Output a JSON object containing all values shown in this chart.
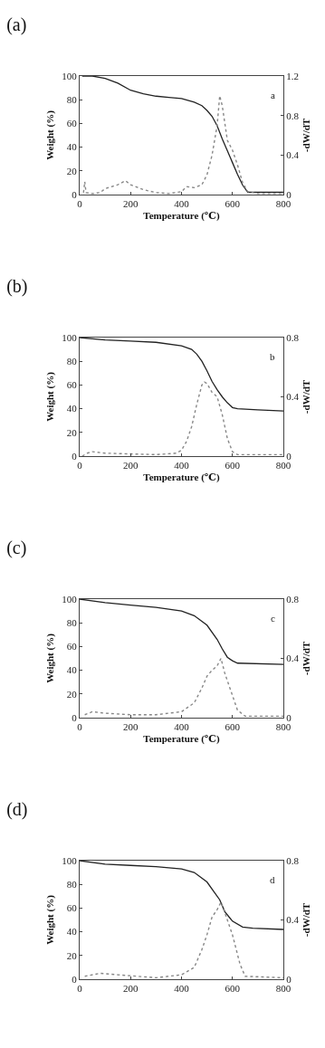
{
  "chart_data": [
    {
      "type": "line",
      "title": "(a)",
      "xlabel": "Temperature (℃)",
      "ylabel": "Weight (%)",
      "y2label": "-dW/dT",
      "annotations": [
        "a"
      ],
      "xlim": [
        0,
        800
      ],
      "xticks": [
        0,
        200,
        400,
        600,
        800
      ],
      "ylim": [
        0,
        100
      ],
      "yticks": [
        0,
        20,
        40,
        60,
        80,
        100
      ],
      "y2lim": [
        0,
        1.2
      ],
      "y2ticks": [
        0,
        0.4,
        0.8,
        1.2
      ],
      "grid": false,
      "series": [
        {
          "color": "#222222",
          "line_style": "solid",
          "x": [
            10,
            50,
            100,
            150,
            200,
            250,
            300,
            350,
            400,
            450,
            480,
            500,
            520,
            540,
            560,
            580,
            600,
            620,
            640,
            660,
            700,
            800
          ],
          "values": [
            100,
            100,
            98,
            94,
            88,
            85,
            83,
            82,
            81,
            78,
            75,
            71,
            66,
            58,
            47,
            37,
            27,
            17,
            8,
            2,
            2,
            2
          ]
        },
        {
          "axis": "y2",
          "color": "#888888",
          "line_style": "dotted",
          "x": [
            15,
            20,
            25,
            50,
            80,
            100,
            150,
            180,
            200,
            250,
            300,
            350,
            400,
            420,
            450,
            480,
            500,
            520,
            540,
            550,
            560,
            580,
            600,
            620,
            640,
            660,
            700,
            800
          ],
          "values": [
            0.02,
            0.13,
            0.02,
            0.01,
            0.02,
            0.06,
            0.1,
            0.14,
            0.1,
            0.05,
            0.02,
            0.01,
            0.03,
            0.08,
            0.07,
            0.1,
            0.2,
            0.4,
            0.7,
            1.0,
            0.9,
            0.55,
            0.45,
            0.3,
            0.12,
            0.03,
            0.01,
            0.01
          ]
        }
      ]
    },
    {
      "type": "line",
      "title": "(b)",
      "xlabel": "Temperature (℃)",
      "ylabel": "Weight (%)",
      "y2label": "-dW/dT",
      "annotations": [
        "b"
      ],
      "xlim": [
        0,
        800
      ],
      "xticks": [
        0,
        200,
        400,
        600,
        800
      ],
      "ylim": [
        0,
        100
      ],
      "yticks": [
        0,
        20,
        40,
        60,
        80,
        100
      ],
      "y2lim": [
        0,
        0.8
      ],
      "y2ticks": [
        0,
        0.4,
        0.8
      ],
      "grid": false,
      "series": [
        {
          "color": "#222222",
          "line_style": "solid",
          "x": [
            0,
            100,
            200,
            300,
            400,
            440,
            460,
            480,
            500,
            520,
            540,
            560,
            580,
            600,
            620,
            700,
            800
          ],
          "values": [
            100,
            98,
            97,
            96,
            93,
            90,
            86,
            80,
            72,
            63,
            56,
            50,
            45,
            41,
            40,
            39,
            38
          ]
        },
        {
          "axis": "y2",
          "color": "#888888",
          "line_style": "dotted",
          "x": [
            10,
            30,
            50,
            100,
            200,
            300,
            380,
            400,
            420,
            440,
            460,
            480,
            490,
            500,
            520,
            540,
            560,
            580,
            600,
            620,
            700,
            800
          ],
          "values": [
            0.0,
            0.02,
            0.03,
            0.02,
            0.015,
            0.01,
            0.02,
            0.04,
            0.1,
            0.2,
            0.35,
            0.48,
            0.5,
            0.49,
            0.43,
            0.4,
            0.28,
            0.12,
            0.03,
            0.01,
            0.01,
            0.01
          ]
        }
      ]
    },
    {
      "type": "line",
      "title": "(c)",
      "xlabel": "Temperature (℃)",
      "ylabel": "Weight (%)",
      "y2label": "-dW/dT",
      "annotations": [
        "c"
      ],
      "xlim": [
        0,
        800
      ],
      "xticks": [
        0,
        200,
        400,
        600,
        800
      ],
      "ylim": [
        0,
        100
      ],
      "yticks": [
        0,
        20,
        40,
        60,
        80,
        100
      ],
      "y2lim": [
        0,
        0.8
      ],
      "y2ticks": [
        0,
        0.4,
        0.8
      ],
      "grid": false,
      "series": [
        {
          "color": "#222222",
          "line_style": "solid",
          "x": [
            0,
            100,
            200,
            300,
            400,
            450,
            500,
            540,
            560,
            580,
            600,
            620,
            800
          ],
          "values": [
            100,
            97,
            95,
            93,
            90,
            86,
            78,
            66,
            58,
            51,
            48,
            46,
            45
          ]
        },
        {
          "axis": "y2",
          "color": "#888888",
          "line_style": "dotted",
          "x": [
            20,
            50,
            100,
            200,
            300,
            400,
            450,
            480,
            500,
            520,
            540,
            555,
            570,
            600,
            620,
            650,
            800
          ],
          "values": [
            0.02,
            0.04,
            0.03,
            0.02,
            0.02,
            0.04,
            0.1,
            0.2,
            0.28,
            0.32,
            0.35,
            0.4,
            0.3,
            0.15,
            0.05,
            0.01,
            0.01
          ]
        }
      ]
    },
    {
      "type": "line",
      "title": "(d)",
      "ylabel": "Weight (%)",
      "y2label": "-dW/dT",
      "annotations": [
        "d"
      ],
      "xlim": [
        0,
        800
      ],
      "xticks": [
        0,
        200,
        400,
        600,
        800
      ],
      "ylim": [
        0,
        100
      ],
      "yticks": [
        0,
        20,
        40,
        60,
        80,
        100
      ],
      "y2lim": [
        0,
        0.8
      ],
      "y2ticks": [
        0,
        0.4,
        0.8
      ],
      "grid": false,
      "series": [
        {
          "color": "#222222",
          "line_style": "solid",
          "x": [
            0,
            100,
            200,
            300,
            400,
            450,
            500,
            530,
            550,
            570,
            600,
            640,
            680,
            800
          ],
          "values": [
            100,
            97,
            96,
            95,
            93,
            90,
            82,
            73,
            67,
            57,
            49,
            44,
            43,
            42
          ]
        },
        {
          "axis": "y2",
          "color": "#888888",
          "line_style": "dotted",
          "x": [
            20,
            80,
            150,
            300,
            400,
            450,
            480,
            500,
            520,
            540,
            555,
            570,
            600,
            630,
            650,
            800
          ],
          "values": [
            0.02,
            0.04,
            0.03,
            0.01,
            0.03,
            0.08,
            0.2,
            0.3,
            0.42,
            0.47,
            0.52,
            0.45,
            0.3,
            0.1,
            0.02,
            0.01
          ]
        }
      ]
    }
  ]
}
